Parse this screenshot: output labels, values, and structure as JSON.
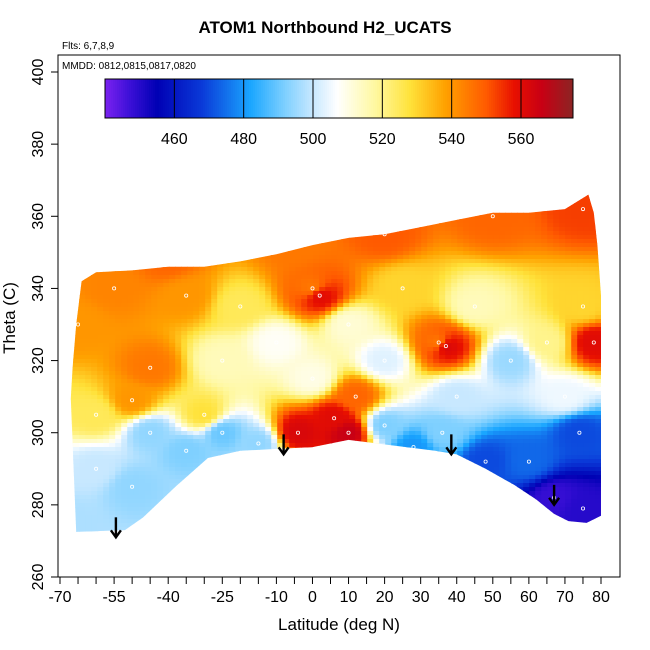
{
  "chart_data": {
    "type": "heatmap",
    "title": "ATOM1 Northbound H2_UCATS",
    "subtitle_lines": [
      "Flts: 6,7,8,9",
      "MMDD: 0812,0815,0817,0820"
    ],
    "xlabel": "Latitude (deg N)",
    "ylabel": "Theta (C)",
    "xlim": [
      -70,
      80
    ],
    "ylim": [
      260,
      400
    ],
    "x_ticks": [
      -70,
      -55,
      -40,
      -25,
      -10,
      0,
      10,
      20,
      30,
      40,
      50,
      60,
      70,
      80
    ],
    "y_ticks": [
      260,
      280,
      300,
      320,
      340,
      360,
      380,
      400
    ],
    "colorbar": {
      "range": [
        440,
        575
      ],
      "ticks": [
        460,
        480,
        500,
        520,
        540,
        560
      ],
      "stops": [
        {
          "v": 440,
          "c": "#7b22f0"
        },
        {
          "v": 447,
          "c": "#3d10d8"
        },
        {
          "v": 455,
          "c": "#0000b4"
        },
        {
          "v": 468,
          "c": "#0a3ad8"
        },
        {
          "v": 482,
          "c": "#1aa6ff"
        },
        {
          "v": 492,
          "c": "#7fd0ff"
        },
        {
          "v": 500,
          "c": "#c8e8ff"
        },
        {
          "v": 507,
          "c": "#ffffff"
        },
        {
          "v": 518,
          "c": "#fff8a0"
        },
        {
          "v": 528,
          "c": "#ffe23a"
        },
        {
          "v": 538,
          "c": "#ffa200"
        },
        {
          "v": 550,
          "c": "#ff5a00"
        },
        {
          "v": 558,
          "c": "#e81000"
        },
        {
          "v": 566,
          "c": "#c80014"
        },
        {
          "v": 575,
          "c": "#8c2424"
        }
      ]
    },
    "arrows_lat": [
      -54.5,
      -8,
      38.5,
      67
    ],
    "field_samples": [
      {
        "lat": -68,
        "theta": 275,
        "h2": 497
      },
      {
        "lat": -60,
        "theta": 290,
        "h2": 500
      },
      {
        "lat": -50,
        "theta": 285,
        "h2": 494
      },
      {
        "lat": -45,
        "theta": 300,
        "h2": 494
      },
      {
        "lat": -35,
        "theta": 295,
        "h2": 492
      },
      {
        "lat": -25,
        "theta": 300,
        "h2": 490
      },
      {
        "lat": -15,
        "theta": 297,
        "h2": 494
      },
      {
        "lat": -4,
        "theta": 300,
        "h2": 562
      },
      {
        "lat": 6,
        "theta": 304,
        "h2": 560
      },
      {
        "lat": 12,
        "theta": 310,
        "h2": 548
      },
      {
        "lat": 20,
        "theta": 302,
        "h2": 492
      },
      {
        "lat": 28,
        "theta": 296,
        "h2": 480
      },
      {
        "lat": 36,
        "theta": 300,
        "h2": 492
      },
      {
        "lat": 48,
        "theta": 292,
        "h2": 470
      },
      {
        "lat": 60,
        "theta": 292,
        "h2": 474
      },
      {
        "lat": 67,
        "theta": 282,
        "h2": 448
      },
      {
        "lat": 75,
        "theta": 279,
        "h2": 450
      },
      {
        "lat": 74,
        "theta": 300,
        "h2": 470
      },
      {
        "lat": -60,
        "theta": 305,
        "h2": 525
      },
      {
        "lat": -50,
        "theta": 309,
        "h2": 540
      },
      {
        "lat": -30,
        "theta": 305,
        "h2": 528
      },
      {
        "lat": -45,
        "theta": 318,
        "h2": 545
      },
      {
        "lat": -65,
        "theta": 330,
        "h2": 540
      },
      {
        "lat": -55,
        "theta": 340,
        "h2": 543
      },
      {
        "lat": -35,
        "theta": 338,
        "h2": 540
      },
      {
        "lat": -20,
        "theta": 335,
        "h2": 525
      },
      {
        "lat": -25,
        "theta": 320,
        "h2": 515
      },
      {
        "lat": -10,
        "theta": 325,
        "h2": 508
      },
      {
        "lat": 0,
        "theta": 340,
        "h2": 545
      },
      {
        "lat": 0,
        "theta": 315,
        "h2": 510
      },
      {
        "lat": 10,
        "theta": 330,
        "h2": 512
      },
      {
        "lat": 20,
        "theta": 320,
        "h2": 503
      },
      {
        "lat": 25,
        "theta": 340,
        "h2": 530
      },
      {
        "lat": 35,
        "theta": 325,
        "h2": 545
      },
      {
        "lat": 40,
        "theta": 310,
        "h2": 500
      },
      {
        "lat": 45,
        "theta": 335,
        "h2": 515
      },
      {
        "lat": 55,
        "theta": 320,
        "h2": 495
      },
      {
        "lat": 65,
        "theta": 325,
        "h2": 520
      },
      {
        "lat": 75,
        "theta": 335,
        "h2": 530
      },
      {
        "lat": 78,
        "theta": 325,
        "h2": 560
      },
      {
        "lat": 70,
        "theta": 310,
        "h2": 505
      },
      {
        "lat": -40,
        "theta": 348,
        "h2": 548
      },
      {
        "lat": -5,
        "theta": 352,
        "h2": 545
      },
      {
        "lat": 20,
        "theta": 355,
        "h2": 550
      },
      {
        "lat": 50,
        "theta": 360,
        "h2": 548
      },
      {
        "lat": 75,
        "theta": 362,
        "h2": 553
      },
      {
        "lat": 2,
        "theta": 338,
        "h2": 560
      },
      {
        "lat": 37,
        "theta": 324,
        "h2": 562
      },
      {
        "lat": 10,
        "theta": 300,
        "h2": 566
      }
    ]
  }
}
